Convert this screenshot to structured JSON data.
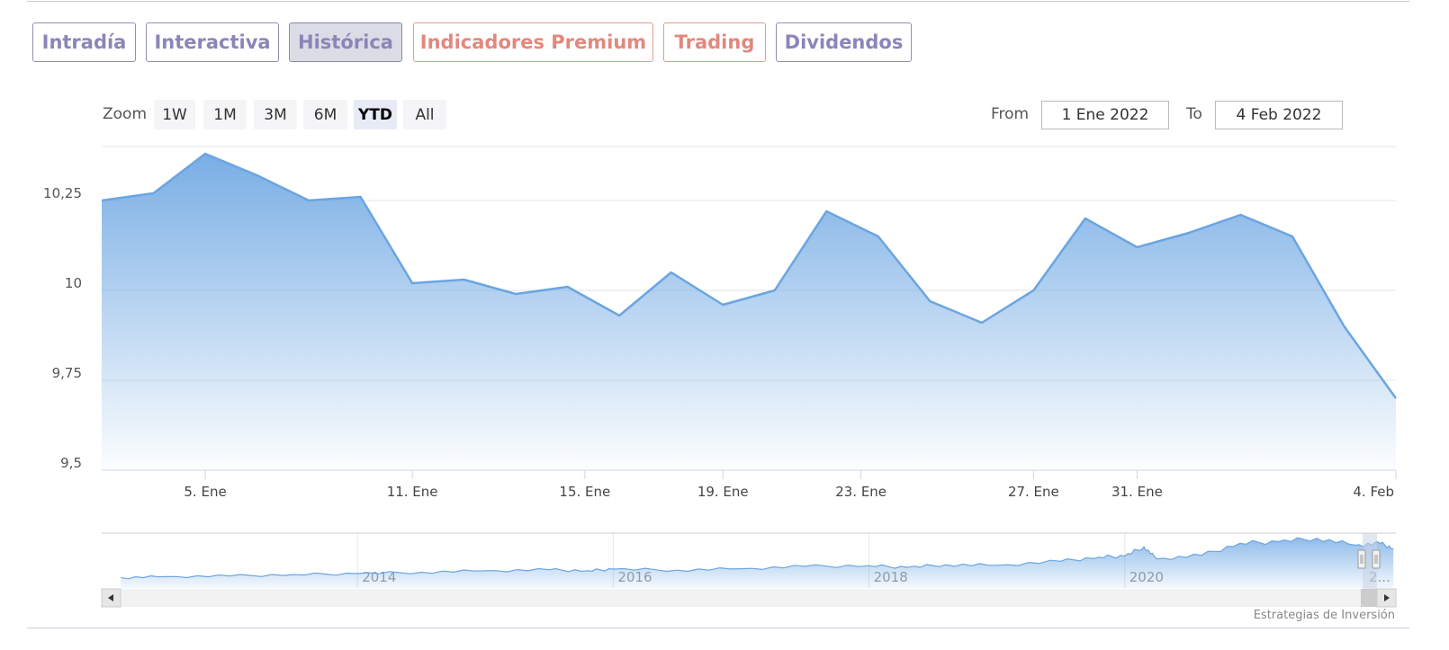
{
  "tabs": [
    {
      "label": "Intradía",
      "style": "normal"
    },
    {
      "label": "Interactiva",
      "style": "normal"
    },
    {
      "label": "Histórica",
      "style": "active"
    },
    {
      "label": "Indicadores Premium",
      "style": "premium"
    },
    {
      "label": "Trading",
      "style": "premium"
    },
    {
      "label": "Dividendos",
      "style": "normal"
    }
  ],
  "zoom": {
    "label": "Zoom",
    "buttons": [
      "1W",
      "1M",
      "3M",
      "6M",
      "YTD",
      "All"
    ],
    "selected": "YTD"
  },
  "range": {
    "from_label": "From",
    "from_value": "1 Ene 2022",
    "to_label": "To",
    "to_value": "4 Feb 2022"
  },
  "colors": {
    "series": "#6aa5e2",
    "grid": "#e6e6e6",
    "tab_border": "#8f8fb5",
    "tab_text": "#8a86b8",
    "premium": "#e2887e"
  },
  "chart_data": {
    "type": "area",
    "ylim": [
      9.5,
      10.4
    ],
    "yticks": [
      9.5,
      9.75,
      10,
      10.25
    ],
    "ytick_labels": [
      "9,5",
      "9,75",
      "10",
      "10,25"
    ],
    "xlim": [
      "2022-01-03",
      "2022-02-04"
    ],
    "xticks": [
      {
        "date": "2022-01-05",
        "label": "5. Ene"
      },
      {
        "date": "2022-01-11",
        "label": "11. Ene"
      },
      {
        "date": "2022-01-15",
        "label": "15. Ene"
      },
      {
        "date": "2022-01-19",
        "label": "19. Ene"
      },
      {
        "date": "2022-01-23",
        "label": "23. Ene"
      },
      {
        "date": "2022-01-27",
        "label": "27. Ene"
      },
      {
        "date": "2022-01-31",
        "label": "31. Ene"
      },
      {
        "date": "2022-02-04",
        "label": "4. Feb"
      }
    ],
    "series": [
      {
        "points": [
          {
            "x": "2022-01-03",
            "y": 10.25
          },
          {
            "x": "2022-01-04",
            "y": 10.27
          },
          {
            "x": "2022-01-05",
            "y": 10.38
          },
          {
            "x": "2022-01-06",
            "y": 10.32
          },
          {
            "x": "2022-01-07",
            "y": 10.25
          },
          {
            "x": "2022-01-10",
            "y": 10.26
          },
          {
            "x": "2022-01-11",
            "y": 10.02
          },
          {
            "x": "2022-01-12",
            "y": 10.03
          },
          {
            "x": "2022-01-13",
            "y": 9.99
          },
          {
            "x": "2022-01-14",
            "y": 10.01
          },
          {
            "x": "2022-01-17",
            "y": 9.93
          },
          {
            "x": "2022-01-18",
            "y": 10.05
          },
          {
            "x": "2022-01-19",
            "y": 9.96
          },
          {
            "x": "2022-01-20",
            "y": 10.0
          },
          {
            "x": "2022-01-21",
            "y": 10.22
          },
          {
            "x": "2022-01-24",
            "y": 10.15
          },
          {
            "x": "2022-01-25",
            "y": 9.97
          },
          {
            "x": "2022-01-26",
            "y": 9.91
          },
          {
            "x": "2022-01-27",
            "y": 10.0
          },
          {
            "x": "2022-01-28",
            "y": 10.2
          },
          {
            "x": "2022-01-31",
            "y": 10.12
          },
          {
            "x": "2022-02-01",
            "y": 10.16
          },
          {
            "x": "2022-02-02",
            "y": 10.21
          },
          {
            "x": "2022-02-03",
            "y": 10.15
          },
          {
            "x": "2022-02-03",
            "y": 9.9
          },
          {
            "x": "2022-02-04",
            "y": 9.7
          }
        ]
      }
    ],
    "navigator": {
      "xticks": [
        {
          "year": 2014,
          "label": "2014"
        },
        {
          "year": 2016,
          "label": "2016"
        },
        {
          "year": 2018,
          "label": "2018"
        },
        {
          "year": 2020,
          "label": "2020"
        },
        {
          "year": 2022,
          "label": "2..."
        }
      ],
      "series": [
        {
          "x": 2012.15,
          "y": 3.0
        },
        {
          "x": 2012.5,
          "y": 3.3
        },
        {
          "x": 2013.0,
          "y": 3.5
        },
        {
          "x": 2013.5,
          "y": 3.9
        },
        {
          "x": 2014.0,
          "y": 4.2
        },
        {
          "x": 2014.5,
          "y": 4.6
        },
        {
          "x": 2015.0,
          "y": 5.0
        },
        {
          "x": 2015.5,
          "y": 5.3
        },
        {
          "x": 2015.8,
          "y": 5.0
        },
        {
          "x": 2016.0,
          "y": 5.5
        },
        {
          "x": 2016.5,
          "y": 5.2
        },
        {
          "x": 2017.0,
          "y": 5.6
        },
        {
          "x": 2017.5,
          "y": 6.3
        },
        {
          "x": 2018.0,
          "y": 6.5
        },
        {
          "x": 2018.3,
          "y": 6.0
        },
        {
          "x": 2018.6,
          "y": 6.8
        },
        {
          "x": 2019.0,
          "y": 6.6
        },
        {
          "x": 2019.5,
          "y": 7.8
        },
        {
          "x": 2019.8,
          "y": 9.0
        },
        {
          "x": 2020.0,
          "y": 9.3
        },
        {
          "x": 2020.15,
          "y": 12.0
        },
        {
          "x": 2020.25,
          "y": 8.5
        },
        {
          "x": 2020.6,
          "y": 9.5
        },
        {
          "x": 2020.9,
          "y": 13.0
        },
        {
          "x": 2021.2,
          "y": 13.5
        },
        {
          "x": 2021.5,
          "y": 14.5
        },
        {
          "x": 2021.8,
          "y": 12.5
        },
        {
          "x": 2022.0,
          "y": 13.0
        },
        {
          "x": 2022.1,
          "y": 11.5
        }
      ]
    }
  },
  "credit": "Estrategias de Inversión"
}
